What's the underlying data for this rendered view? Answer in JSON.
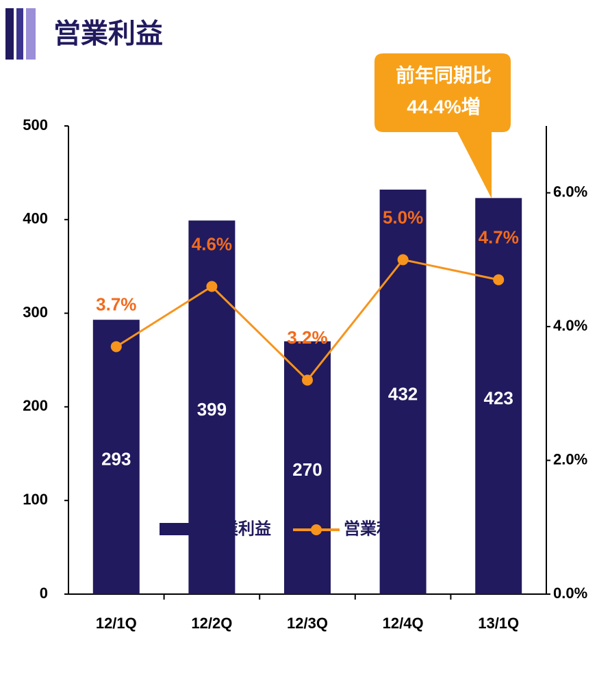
{
  "chart_data": {
    "type": "bar",
    "title": "営業利益",
    "annotation": [
      "前年同期比",
      "44.4%増"
    ],
    "categories": [
      "12/1Q",
      "12/2Q",
      "12/3Q",
      "12/4Q",
      "13/1Q"
    ],
    "series": [
      {
        "name": "営業利益",
        "color": "#211a5e",
        "values": [
          293,
          399,
          270,
          432,
          423
        ]
      },
      {
        "name": "営業利益率",
        "color": "#f7941d",
        "axis": "y2",
        "type": "line",
        "values": [
          3.7,
          4.6,
          3.2,
          5.0,
          4.7
        ],
        "value_labels": [
          "3.7%",
          "4.6%",
          "3.2%",
          "5.0%",
          "4.7%"
        ]
      }
    ],
    "ylim": [
      0,
      500
    ],
    "yticks": [
      0,
      100,
      200,
      300,
      400,
      500
    ],
    "y2lim": [
      0,
      7
    ],
    "y2ticks": [
      {
        "value": 0,
        "label": "0.0%"
      },
      {
        "value": 2,
        "label": "2.0%"
      },
      {
        "value": 4,
        "label": "4.0%"
      },
      {
        "value": 6,
        "label": "6.0%"
      }
    ],
    "legend": "bottom"
  }
}
